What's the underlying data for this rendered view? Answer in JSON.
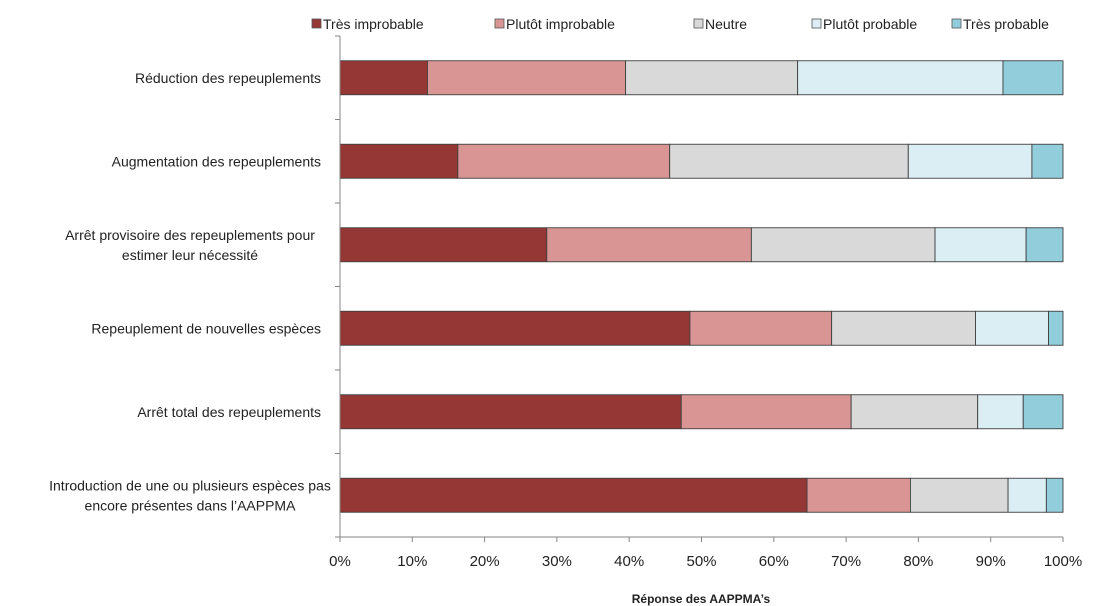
{
  "chart_data": {
    "type": "bar",
    "orientation": "horizontal",
    "stacked": true,
    "percent_stacked": true,
    "title": "",
    "xlabel": "Réponse des AAPPMA’s",
    "ylabel": "",
    "xlim": [
      0,
      100
    ],
    "grid": false,
    "legend_position": "top",
    "x_ticks": [
      "0%",
      "10%",
      "20%",
      "30%",
      "40%",
      "50%",
      "60%",
      "70%",
      "80%",
      "90%",
      "100%"
    ],
    "categories": [
      "Réduction  des repeuplements",
      "Augmentation des repeuplements",
      "Arrêt provisoire des repeuplements pour estimer leur  nécessité",
      "Repeuplement  de nouvelles espèces",
      "Arrêt total  des repeuplements",
      "Introduction  de une ou plusieurs espèces pas encore présentes  dans l’AAPPMA"
    ],
    "category_lines": [
      [
        "Réduction  des repeuplements"
      ],
      [
        "Augmentation des repeuplements"
      ],
      [
        "Arrêt provisoire des repeuplements pour",
        "estimer leur  nécessité"
      ],
      [
        "Repeuplement  de nouvelles espèces"
      ],
      [
        "Arrêt total  des repeuplements"
      ],
      [
        "Introduction  de une ou plusieurs espèces pas",
        "encore présentes  dans l’AAPPMA"
      ]
    ],
    "series": [
      {
        "name": "Très improbable",
        "color": "#953735",
        "values": [
          12.1,
          16.3,
          28.6,
          48.4,
          47.2,
          64.6
        ]
      },
      {
        "name": "Plutôt improbable",
        "color": "#d99594",
        "values": [
          27.4,
          29.3,
          28.3,
          19.6,
          23.5,
          14.3
        ]
      },
      {
        "name": "Neutre",
        "color": "#d9d9d9",
        "values": [
          23.8,
          33.0,
          25.4,
          19.9,
          17.5,
          13.5
        ]
      },
      {
        "name": "Plutôt probable",
        "color": "#daeef3",
        "values": [
          28.4,
          17.1,
          12.6,
          10.1,
          6.3,
          5.3
        ]
      },
      {
        "name": "Très probable",
        "color": "#92cddc",
        "values": [
          8.3,
          4.3,
          5.1,
          2.0,
          5.5,
          2.3
        ]
      }
    ]
  }
}
